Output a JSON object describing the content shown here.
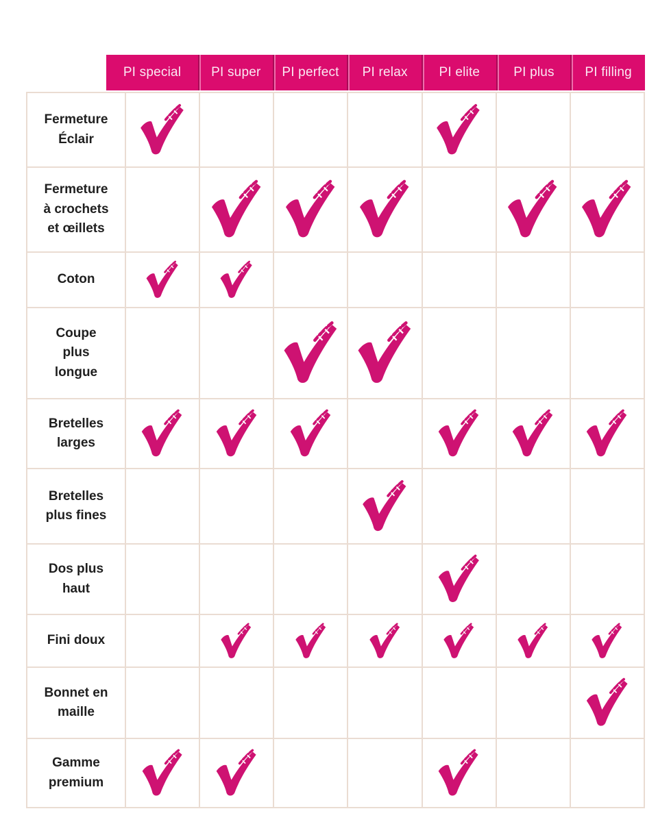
{
  "colors": {
    "header_bg": "#DB0C6E",
    "header_text": "#FBE9F3",
    "check": "#CE1272",
    "grid_line": "#EADCD2",
    "label_text": "#1F1F1F"
  },
  "icons": {
    "check": "checkmark-icon"
  },
  "chart_data": {
    "type": "table",
    "columns": [
      "PI special",
      "PI super",
      "PI perfect",
      "PI relax",
      "PI elite",
      "PI plus",
      "PI filling"
    ],
    "rows": [
      {
        "label": "Fermeture\nÉclair",
        "values": [
          1,
          0,
          0,
          0,
          1,
          0,
          0
        ]
      },
      {
        "label": "Fermeture\nà crochets\net œillets",
        "values": [
          0,
          1,
          1,
          1,
          0,
          1,
          1
        ]
      },
      {
        "label": "Coton",
        "values": [
          1,
          1,
          0,
          0,
          0,
          0,
          0
        ]
      },
      {
        "label": "Coupe\nplus\nlongue",
        "values": [
          0,
          0,
          1,
          1,
          0,
          0,
          0
        ]
      },
      {
        "label": "Bretelles\nlarges",
        "values": [
          1,
          1,
          1,
          0,
          1,
          1,
          1
        ]
      },
      {
        "label": "Bretelles\nplus fines",
        "values": [
          0,
          0,
          0,
          1,
          0,
          0,
          0
        ]
      },
      {
        "label": "Dos plus\nhaut",
        "values": [
          0,
          0,
          0,
          0,
          1,
          0,
          0
        ]
      },
      {
        "label": "Fini doux",
        "values": [
          0,
          1,
          1,
          1,
          1,
          1,
          1
        ]
      },
      {
        "label": "Bonnet en\nmaille",
        "values": [
          0,
          0,
          0,
          0,
          0,
          0,
          1
        ]
      },
      {
        "label": "Gamme\npremium",
        "values": [
          1,
          1,
          0,
          0,
          1,
          0,
          0
        ]
      }
    ],
    "cell_symbol_when_1": "checkmark",
    "cell_symbol_when_0": "",
    "legend_position": "none",
    "grid": true
  }
}
